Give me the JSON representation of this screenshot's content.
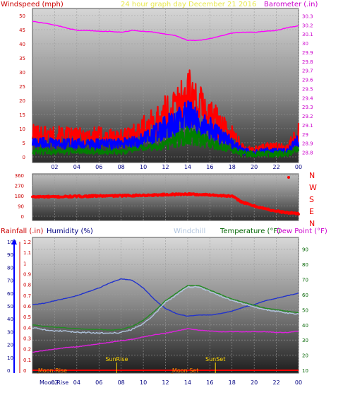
{
  "chart_data": [
    {
      "type": "line",
      "title": "24 hour graph day   December 21 2016",
      "y_left_label": "Windspeed (mph)",
      "y_right_label": "Barometer (.in)",
      "left_ylim": [
        0,
        50
      ],
      "left_ticks": [
        "0",
        "5",
        "10",
        "15",
        "20",
        "25",
        "30",
        "35",
        "40",
        "45",
        "50"
      ],
      "right_ylim": [
        28.75,
        30.35
      ],
      "right_ticks": [
        "28.8",
        "28.9",
        "29",
        "29.1",
        "29.2",
        "29.3",
        "29.4",
        "29.5",
        "29.6",
        "29.7",
        "29.8",
        "29.9",
        "30",
        "30.1",
        "30.2",
        "30.3"
      ],
      "x_ticks": [
        "02",
        "04",
        "06",
        "08",
        "10",
        "12",
        "14",
        "16",
        "18",
        "20",
        "22",
        "00"
      ],
      "x_hours": [
        0,
        1,
        2,
        3,
        4,
        5,
        6,
        7,
        8,
        9,
        10,
        11,
        12,
        13,
        14,
        15,
        16,
        17,
        18,
        19,
        20,
        21,
        22,
        23,
        24
      ],
      "series": [
        {
          "name": "",
          "color": "#ff0000",
          "values": [
            8,
            8,
            7.5,
            7.5,
            7,
            7.5,
            7.5,
            7,
            7,
            8,
            10,
            12,
            15,
            18,
            22,
            18,
            15,
            11,
            8,
            3,
            2.5,
            3.5,
            3.5,
            3,
            9
          ]
        },
        {
          "name": "",
          "color": "#0000ff",
          "values": [
            5,
            5,
            4.5,
            4.5,
            4.5,
            4.5,
            4.5,
            4.5,
            4.5,
            5,
            6,
            8,
            10,
            12,
            14,
            12,
            10,
            7,
            5,
            2,
            1.5,
            2,
            2,
            2,
            6
          ]
        },
        {
          "name": "",
          "color": "#008000",
          "values": [
            2,
            2,
            2,
            2,
            2,
            2,
            2,
            2,
            2,
            2.5,
            3,
            3.5,
            4.5,
            6,
            8,
            6.5,
            5,
            3.5,
            2.5,
            1,
            1,
            1,
            1,
            1,
            3
          ]
        },
        {
          "name": "",
          "color": "#ff00ff",
          "axis": "right",
          "values": [
            30.24,
            30.22,
            30.2,
            30.17,
            30.14,
            30.14,
            30.13,
            30.13,
            30.12,
            30.14,
            30.13,
            30.12,
            30.1,
            30.08,
            30.03,
            30.03,
            30.05,
            30.08,
            30.11,
            30.12,
            30.12,
            30.13,
            30.14,
            30.17,
            30.19
          ]
        }
      ]
    },
    {
      "type": "scatter",
      "y_left_label": "",
      "left_ylim": [
        0,
        360
      ],
      "left_ticks": [
        "0",
        "90",
        "180",
        "270",
        "360"
      ],
      "compass_labels": [
        "N",
        "W",
        "S",
        "E",
        "N"
      ],
      "x_hours": [
        0,
        1,
        2,
        3,
        4,
        5,
        6,
        7,
        8,
        9,
        10,
        11,
        12,
        13,
        14,
        15,
        16,
        17,
        18,
        19,
        20,
        21,
        22,
        23,
        24
      ],
      "series": [
        {
          "name": "",
          "color": "#ff0000",
          "values": [
            170,
            172,
            170,
            172,
            174,
            176,
            178,
            178,
            180,
            182,
            184,
            186,
            190,
            192,
            195,
            190,
            188,
            182,
            175,
            120,
            90,
            65,
            45,
            30,
            25
          ]
        }
      ]
    },
    {
      "type": "line",
      "labels": {
        "rainfall": "Rainfall (.in)",
        "humidity": "Humidity (%)",
        "windchill": "Windchill",
        "temperature": "Temperature (°F)",
        "dewpoint": "Dew Point (°F)"
      },
      "label_colors": {
        "rainfall": "#cc0000",
        "humidity": "#000080",
        "windchill": "#b0c4de",
        "temperature": "#006400",
        "dewpoint": "#cc00cc"
      },
      "left_ylim": [
        0,
        1.2
      ],
      "left_ticks": [
        "0",
        "0.05",
        "0.1",
        "0.15",
        "0.2",
        "0.25",
        "0.3",
        "0.35",
        "0.4",
        "0.45",
        "0.5",
        "0.55",
        "0.6",
        "0.65",
        "0.7",
        "0.75",
        "0.8",
        "0.85",
        "0.9",
        "0.95",
        "1",
        "1.05",
        "1.1",
        "1.15",
        "1.2"
      ],
      "left_ticks_shown": [
        "0",
        "0.1",
        "0.2",
        "0.3",
        "0.4",
        "0.5",
        "0.6",
        "0.7",
        "0.8",
        "0.9",
        "1",
        "1.1",
        "1.2"
      ],
      "humidity_ticks": [
        "0",
        "10",
        "20",
        "30",
        "40",
        "50",
        "60",
        "70",
        "80",
        "90",
        "100"
      ],
      "right_ylim": [
        10,
        95
      ],
      "right_ticks": [
        "10",
        "20",
        "30",
        "40",
        "50",
        "60",
        "70",
        "80",
        "90"
      ],
      "x_ticks": [
        "02",
        "04",
        "06",
        "08",
        "10",
        "12",
        "14",
        "16",
        "18",
        "20",
        "22",
        "00"
      ],
      "x_hours": [
        0,
        1,
        2,
        3,
        4,
        5,
        6,
        7,
        8,
        9,
        10,
        11,
        12,
        13,
        14,
        15,
        16,
        17,
        18,
        19,
        20,
        21,
        22,
        23,
        24
      ],
      "series": [
        {
          "name": "Humidity (%)",
          "color": "#2233cc",
          "axis": "humidity",
          "values": [
            51,
            52,
            54,
            56,
            58,
            61,
            64,
            68,
            71,
            70,
            64,
            55,
            48,
            44,
            42,
            43,
            43,
            44,
            46,
            49,
            51,
            54,
            56,
            58,
            60
          ]
        },
        {
          "name": "Temperature (°F)",
          "color": "#228b22",
          "axis": "right",
          "values": [
            40,
            39,
            38.5,
            38,
            37.5,
            37,
            37,
            36.5,
            37,
            39,
            43,
            49,
            56,
            61,
            66,
            66,
            63,
            60,
            57,
            55,
            53,
            51,
            50,
            49,
            48
          ]
        },
        {
          "name": "Windchill",
          "color": "#b0c4de",
          "axis": "right",
          "values": [
            38,
            37,
            36,
            36,
            35,
            35,
            34.5,
            34.5,
            35,
            37,
            41,
            47,
            55,
            60,
            65,
            65,
            62,
            59,
            56,
            54,
            52,
            50,
            49,
            48,
            47
          ]
        },
        {
          "name": "Dew Point (°F)",
          "color": "#dd22dd",
          "axis": "right",
          "values": [
            22,
            23,
            24,
            25,
            25.5,
            26.5,
            27.5,
            28.5,
            29.5,
            30.5,
            32,
            33.5,
            34.5,
            36,
            37.5,
            36.5,
            36,
            35.5,
            35.5,
            35.5,
            35.5,
            35.5,
            35,
            35,
            36
          ]
        },
        {
          "name": "Rainfall (.in)",
          "color": "#ff0000",
          "axis": "left",
          "values": [
            0,
            0,
            0,
            0,
            0,
            0,
            0,
            0,
            0,
            0,
            0,
            0,
            0,
            0,
            0,
            0,
            0,
            0,
            0,
            0,
            0,
            0,
            0,
            0,
            0
          ]
        }
      ],
      "events": [
        {
          "label": "Moon Rise",
          "hour": 0.5,
          "row": "top"
        },
        {
          "label": "SunRise",
          "hour": 7.6,
          "row": "top"
        },
        {
          "label": "Moon Set",
          "hour": 12.6,
          "row": "top"
        },
        {
          "label": "SunSet",
          "hour": 16.5,
          "row": "top"
        },
        {
          "label": "Moon Rise",
          "hour": 0.5,
          "row": "bottom"
        }
      ],
      "event_colors": {
        "sun": "#ffd700",
        "moon": "#ff8c00"
      }
    }
  ]
}
